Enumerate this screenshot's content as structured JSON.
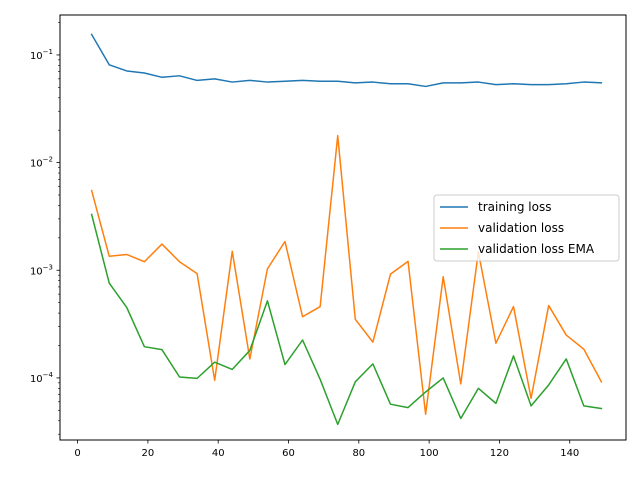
{
  "chart_data": {
    "type": "line",
    "title": "",
    "xlabel": "",
    "ylabel": "",
    "xlim": [
      -5,
      156
    ],
    "ylim": [
      2.65e-05,
      0.235
    ],
    "yscale": "log",
    "grid": false,
    "legend_position": "center-right",
    "x_ticks": [
      0,
      20,
      40,
      60,
      80,
      100,
      120,
      140
    ],
    "x_tick_labels": [
      "0",
      "20",
      "40",
      "60",
      "80",
      "100",
      "120",
      "140"
    ],
    "y_ticks": [
      {
        "value": 0.0001,
        "base": "10",
        "exp": "−4"
      },
      {
        "value": 0.001,
        "base": "10",
        "exp": "−3"
      },
      {
        "value": 0.01,
        "base": "10",
        "exp": "−2"
      },
      {
        "value": 0.1,
        "base": "10",
        "exp": "−1"
      }
    ],
    "x": [
      4,
      9,
      14,
      19,
      24,
      29,
      34,
      39,
      44,
      49,
      54,
      59,
      64,
      69,
      74,
      79,
      84,
      89,
      94,
      99,
      104,
      109,
      114,
      119,
      124,
      129,
      134,
      139,
      144,
      149
    ],
    "series": [
      {
        "name": "training loss",
        "color": "#1f77b4",
        "values": [
          0.155,
          0.081,
          0.071,
          0.068,
          0.062,
          0.064,
          0.058,
          0.06,
          0.056,
          0.058,
          0.056,
          0.057,
          0.058,
          0.057,
          0.057,
          0.055,
          0.056,
          0.054,
          0.054,
          0.051,
          0.055,
          0.055,
          0.056,
          0.053,
          0.054,
          0.053,
          0.053,
          0.054,
          0.056,
          0.055
        ]
      },
      {
        "name": "validation loss",
        "color": "#ff7f0e",
        "values": [
          0.0055,
          0.00135,
          0.0014,
          0.0012,
          0.00175,
          0.0012,
          0.00093,
          9.5e-05,
          0.0015,
          0.00015,
          0.00103,
          0.00185,
          0.00037,
          0.00046,
          0.0178,
          0.00035,
          0.000215,
          0.00092,
          0.00121,
          4.6e-05,
          0.00087,
          8.8e-05,
          0.00148,
          0.00021,
          0.00046,
          6.45e-05,
          0.00047,
          0.00025,
          0.000185,
          9.2e-05
        ]
      },
      {
        "name": "validation loss EMA",
        "color": "#2ca02c",
        "values": [
          0.0033,
          0.00076,
          0.00045,
          0.000195,
          0.000183,
          0.000102,
          9.9e-05,
          0.00014,
          0.00012,
          0.00018,
          0.00052,
          0.000133,
          0.000225,
          9.7e-05,
          3.7e-05,
          9.2e-05,
          0.000135,
          5.7e-05,
          5.3e-05,
          7.4e-05,
          0.0001,
          4.2e-05,
          8e-05,
          5.8e-05,
          0.00016,
          5.5e-05,
          8.6e-05,
          0.00015,
          5.5e-05,
          5.2e-05
        ]
      }
    ]
  }
}
